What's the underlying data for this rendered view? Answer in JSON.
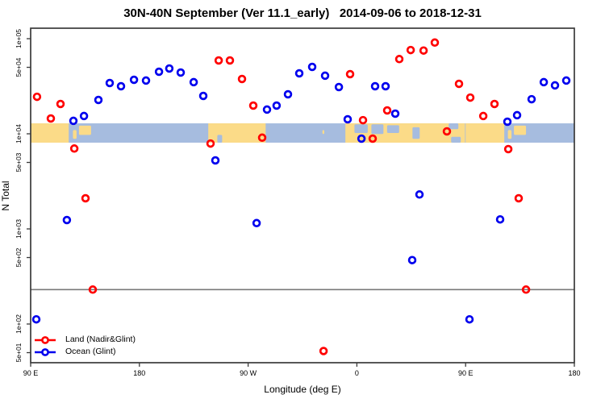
{
  "chart_data": {
    "type": "scatter",
    "title": "30N-40N September (Ver 11.1_early)   2014-09-06 to 2018-12-31",
    "xlabel": "Longitude (deg E)",
    "ylabel": "N Total",
    "x_axis": {
      "note": "longitude axis starts at 90E and runs eastward 450 degrees (wraps past 90E to 180)",
      "range_axis_deg": [
        90,
        540
      ],
      "ticks": [
        {
          "axis_deg": 90,
          "label": "90 E"
        },
        {
          "axis_deg": 180,
          "label": "180"
        },
        {
          "axis_deg": 270,
          "label": "90 W"
        },
        {
          "axis_deg": 360,
          "label": "0"
        },
        {
          "axis_deg": 450,
          "label": "90 E"
        },
        {
          "axis_deg": 540,
          "label": "180"
        }
      ]
    },
    "y_axis": {
      "scale": "log10",
      "range": [
        39,
        129000
      ],
      "ticks": [
        {
          "value": 100000,
          "label": "1e+05"
        },
        {
          "value": 50000,
          "label": "5e+04"
        },
        {
          "value": 10000,
          "label": "1e+04"
        },
        {
          "value": 5000,
          "label": "5e+03"
        },
        {
          "value": 1000,
          "label": "1e+03"
        },
        {
          "value": 500,
          "label": "5e+02"
        },
        {
          "value": 100,
          "label": "1e+02"
        },
        {
          "value": 50,
          "label": "5e+01"
        }
      ]
    },
    "ref_line": {
      "value": 230,
      "color": "#787878"
    },
    "map_strip": {
      "n_top": 12880,
      "n_bottom": 8070,
      "ocean_color": "#a6bcdf",
      "land_color": "#fbdb88",
      "land_segments_axis_deg": [
        [
          90,
          121.5
        ],
        [
          237,
          284.5
        ],
        [
          350.5,
          449.5
        ],
        [
          450,
          482
        ]
      ],
      "land_blobs": [
        {
          "l": 125,
          "r": 128,
          "t": 0.35,
          "b": 0.8
        },
        {
          "l": 130,
          "r": 140,
          "t": 0.12,
          "b": 0.6
        },
        {
          "l": 331.5,
          "r": 333,
          "t": 0.35,
          "b": 0.55
        },
        {
          "l": 485,
          "r": 488,
          "t": 0.35,
          "b": 0.8
        },
        {
          "l": 490,
          "r": 500,
          "t": 0.12,
          "b": 0.6
        }
      ],
      "ocean_patches": [
        {
          "l": 244.5,
          "r": 248.5,
          "t": 0.6,
          "b": 1.0
        },
        {
          "l": 358,
          "r": 369,
          "t": 0.05,
          "b": 0.5
        },
        {
          "l": 372,
          "r": 382,
          "t": 0.05,
          "b": 0.55
        },
        {
          "l": 385,
          "r": 395,
          "t": 0.1,
          "b": 0.5
        },
        {
          "l": 406,
          "r": 412,
          "t": 0.2,
          "b": 0.8
        },
        {
          "l": 436,
          "r": 444,
          "t": 0.0,
          "b": 0.3
        },
        {
          "l": 438,
          "r": 446,
          "t": 0.7,
          "b": 1.0
        }
      ]
    },
    "series": [
      {
        "name": "Land (Nadir&Glint)",
        "color": "#ff0000",
        "symbol": "open-circle",
        "points": [
          [
            95.3,
            24500
          ],
          [
            106.7,
            14500
          ],
          [
            114.7,
            20600
          ],
          [
            126.1,
            7000
          ],
          [
            135.4,
            2100
          ],
          [
            141.4,
            230
          ],
          [
            238.9,
            7900
          ],
          [
            245.6,
            59000
          ],
          [
            254.9,
            59000
          ],
          [
            264.9,
            37700
          ],
          [
            274.3,
            19800
          ],
          [
            281.6,
            9100
          ],
          [
            332.4,
            52
          ],
          [
            354.4,
            42400
          ],
          [
            365.1,
            13900
          ],
          [
            373.1,
            8900
          ],
          [
            385.1,
            17600
          ],
          [
            395.1,
            61000
          ],
          [
            404.5,
            76000
          ],
          [
            415.2,
            75000
          ],
          [
            424.5,
            91000
          ],
          [
            434.5,
            10600
          ],
          [
            444.5,
            33500
          ],
          [
            453.9,
            24000
          ],
          [
            464.6,
            15400
          ],
          [
            473.9,
            20600
          ],
          [
            485.3,
            6900
          ],
          [
            493.9,
            2100
          ],
          [
            500.0,
            230
          ]
        ]
      },
      {
        "name": "Ocean (Glint)",
        "color": "#0000ee",
        "symbol": "open-circle",
        "points": [
          [
            94.7,
            112
          ],
          [
            120.0,
            1240
          ],
          [
            125.4,
            13700
          ],
          [
            134.1,
            15400
          ],
          [
            146.1,
            22700
          ],
          [
            155.4,
            34200
          ],
          [
            164.8,
            31600
          ],
          [
            175.5,
            37000
          ],
          [
            185.5,
            36300
          ],
          [
            196.2,
            44900
          ],
          [
            204.8,
            48600
          ],
          [
            214.2,
            44100
          ],
          [
            224.9,
            34900
          ],
          [
            232.9,
            25000
          ],
          [
            242.9,
            5250
          ],
          [
            277.0,
            1150
          ],
          [
            285.6,
            18000
          ],
          [
            293.6,
            19800
          ],
          [
            303.0,
            26000
          ],
          [
            312.3,
            43200
          ],
          [
            323.0,
            50500
          ],
          [
            333.7,
            40800
          ],
          [
            345.1,
            31000
          ],
          [
            352.4,
            14200
          ],
          [
            363.8,
            8900
          ],
          [
            375.1,
            31600
          ],
          [
            383.8,
            31600
          ],
          [
            391.8,
            16300
          ],
          [
            405.8,
            470
          ],
          [
            411.8,
            2300
          ],
          [
            453.2,
            112
          ],
          [
            478.6,
            1260
          ],
          [
            484.6,
            13400
          ],
          [
            492.6,
            15700
          ],
          [
            504.6,
            23100
          ],
          [
            514.7,
            34900
          ],
          [
            524.0,
            32300
          ],
          [
            533.3,
            36300
          ]
        ]
      }
    ],
    "legend_position": "bottom-left"
  },
  "legend": {
    "items": [
      {
        "label": "Land (Nadir&Glint)",
        "color": "#ff0000"
      },
      {
        "label": "Ocean (Glint)",
        "color": "#0000ee"
      }
    ]
  }
}
